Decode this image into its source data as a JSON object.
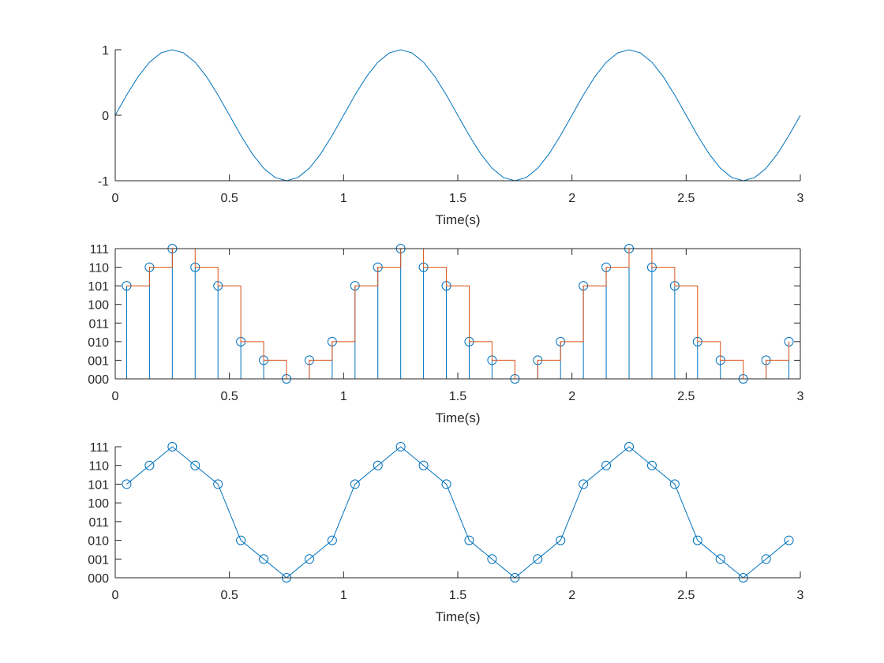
{
  "colors": {
    "series1": "#0072BD",
    "series2": "#D95319",
    "axes": "#262626"
  },
  "chart_data": [
    {
      "type": "line",
      "title": "",
      "xlabel": "Time(s)",
      "ylabel": "",
      "xlim": [
        0,
        3
      ],
      "ylim": [
        -1,
        1
      ],
      "xticks": [
        0,
        0.5,
        1,
        1.5,
        2,
        2.5,
        3
      ],
      "xtick_labels": [
        "0",
        "0.5",
        "1",
        "1.5",
        "2",
        "2.5",
        "3"
      ],
      "yticks": [
        -1,
        0,
        1
      ],
      "ytick_labels": [
        "-1",
        "0",
        "1"
      ],
      "grid": false,
      "box": false,
      "series": [
        {
          "style": "line",
          "color": "#0072BD",
          "x": [
            0,
            0.05,
            0.1,
            0.15,
            0.2,
            0.25,
            0.3,
            0.35,
            0.4,
            0.45,
            0.5,
            0.55,
            0.6,
            0.65,
            0.7,
            0.75,
            0.8,
            0.85,
            0.9,
            0.95,
            1,
            1.05,
            1.1,
            1.15,
            1.2,
            1.25,
            1.3,
            1.35,
            1.4,
            1.45,
            1.5,
            1.55,
            1.6,
            1.65,
            1.7,
            1.75,
            1.8,
            1.85,
            1.9,
            1.95,
            2,
            2.05,
            2.1,
            2.15,
            2.2,
            2.25,
            2.3,
            2.35,
            2.4,
            2.45,
            2.5,
            2.55,
            2.6,
            2.65,
            2.7,
            2.75,
            2.8,
            2.85,
            2.9,
            2.95,
            3
          ],
          "y": [
            0,
            0.309,
            0.588,
            0.809,
            0.951,
            1,
            0.951,
            0.809,
            0.588,
            0.309,
            0,
            -0.309,
            -0.588,
            -0.809,
            -0.951,
            -1,
            -0.951,
            -0.809,
            -0.588,
            -0.309,
            0,
            0.309,
            0.588,
            0.809,
            0.951,
            1,
            0.951,
            0.809,
            0.588,
            0.309,
            0,
            -0.309,
            -0.588,
            -0.809,
            -0.951,
            -1,
            -0.951,
            -0.809,
            -0.588,
            -0.309,
            0,
            0.309,
            0.588,
            0.809,
            0.951,
            1,
            0.951,
            0.809,
            0.588,
            0.309,
            0,
            -0.309,
            -0.588,
            -0.809,
            -0.951,
            -1,
            -0.951,
            -0.809,
            -0.588,
            -0.309,
            0
          ]
        }
      ]
    },
    {
      "type": "stem+stairs",
      "title": "",
      "xlabel": "Time(s)",
      "ylabel": "",
      "xlim": [
        0,
        3
      ],
      "ylim": [
        0,
        7
      ],
      "xticks": [
        0,
        0.5,
        1,
        1.5,
        2,
        2.5,
        3
      ],
      "xtick_labels": [
        "0",
        "0.5",
        "1",
        "1.5",
        "2",
        "2.5",
        "3"
      ],
      "yticks": [
        0,
        1,
        2,
        3,
        4,
        5,
        6,
        7
      ],
      "ytick_labels": [
        "000",
        "001",
        "010",
        "011",
        "100",
        "101",
        "110",
        "111"
      ],
      "grid": false,
      "box": true,
      "series": [
        {
          "style": "stem",
          "color": "#0072BD",
          "x": [
            0.05,
            0.15,
            0.25,
            0.35,
            0.45,
            0.55,
            0.65,
            0.75,
            0.85,
            0.95,
            1.05,
            1.15,
            1.25,
            1.35,
            1.45,
            1.55,
            1.65,
            1.75,
            1.85,
            1.95,
            2.05,
            2.15,
            2.25,
            2.35,
            2.45,
            2.55,
            2.65,
            2.75,
            2.85,
            2.95
          ],
          "y": [
            5,
            6,
            7,
            6,
            5,
            2,
            1,
            0,
            1,
            2,
            5,
            6,
            7,
            6,
            5,
            2,
            1,
            0,
            1,
            2,
            5,
            6,
            7,
            6,
            5,
            2,
            1,
            0,
            1,
            2
          ]
        },
        {
          "style": "stairs",
          "color": "#D95319",
          "x": [
            0.05,
            0.15,
            0.25,
            0.35,
            0.45,
            0.55,
            0.65,
            0.75,
            0.85,
            0.95,
            1.05,
            1.15,
            1.25,
            1.35,
            1.45,
            1.55,
            1.65,
            1.75,
            1.85,
            1.95,
            2.05,
            2.15,
            2.25,
            2.35,
            2.45,
            2.55,
            2.65,
            2.75,
            2.85,
            2.95
          ],
          "y": [
            5,
            6,
            7,
            6,
            5,
            2,
            1,
            0,
            1,
            2,
            5,
            6,
            7,
            6,
            5,
            2,
            1,
            0,
            1,
            2,
            5,
            6,
            7,
            6,
            5,
            2,
            1,
            0,
            1,
            2
          ]
        }
      ]
    },
    {
      "type": "line",
      "title": "",
      "xlabel": "Time(s)",
      "ylabel": "",
      "xlim": [
        0,
        3
      ],
      "ylim": [
        0,
        7
      ],
      "xticks": [
        0,
        0.5,
        1,
        1.5,
        2,
        2.5,
        3
      ],
      "xtick_labels": [
        "0",
        "0.5",
        "1",
        "1.5",
        "2",
        "2.5",
        "3"
      ],
      "yticks": [
        0,
        1,
        2,
        3,
        4,
        5,
        6,
        7
      ],
      "ytick_labels": [
        "000",
        "001",
        "010",
        "011",
        "100",
        "101",
        "110",
        "111"
      ],
      "grid": false,
      "box": false,
      "series": [
        {
          "style": "line-markers",
          "color": "#0072BD",
          "x": [
            0.05,
            0.15,
            0.25,
            0.35,
            0.45,
            0.55,
            0.65,
            0.75,
            0.85,
            0.95,
            1.05,
            1.15,
            1.25,
            1.35,
            1.45,
            1.55,
            1.65,
            1.75,
            1.85,
            1.95,
            2.05,
            2.15,
            2.25,
            2.35,
            2.45,
            2.55,
            2.65,
            2.75,
            2.85,
            2.95
          ],
          "y": [
            5,
            6,
            7,
            6,
            5,
            2,
            1,
            0,
            1,
            2,
            5,
            6,
            7,
            6,
            5,
            2,
            1,
            0,
            1,
            2,
            5,
            6,
            7,
            6,
            5,
            2,
            1,
            0,
            1,
            2
          ]
        }
      ]
    }
  ]
}
